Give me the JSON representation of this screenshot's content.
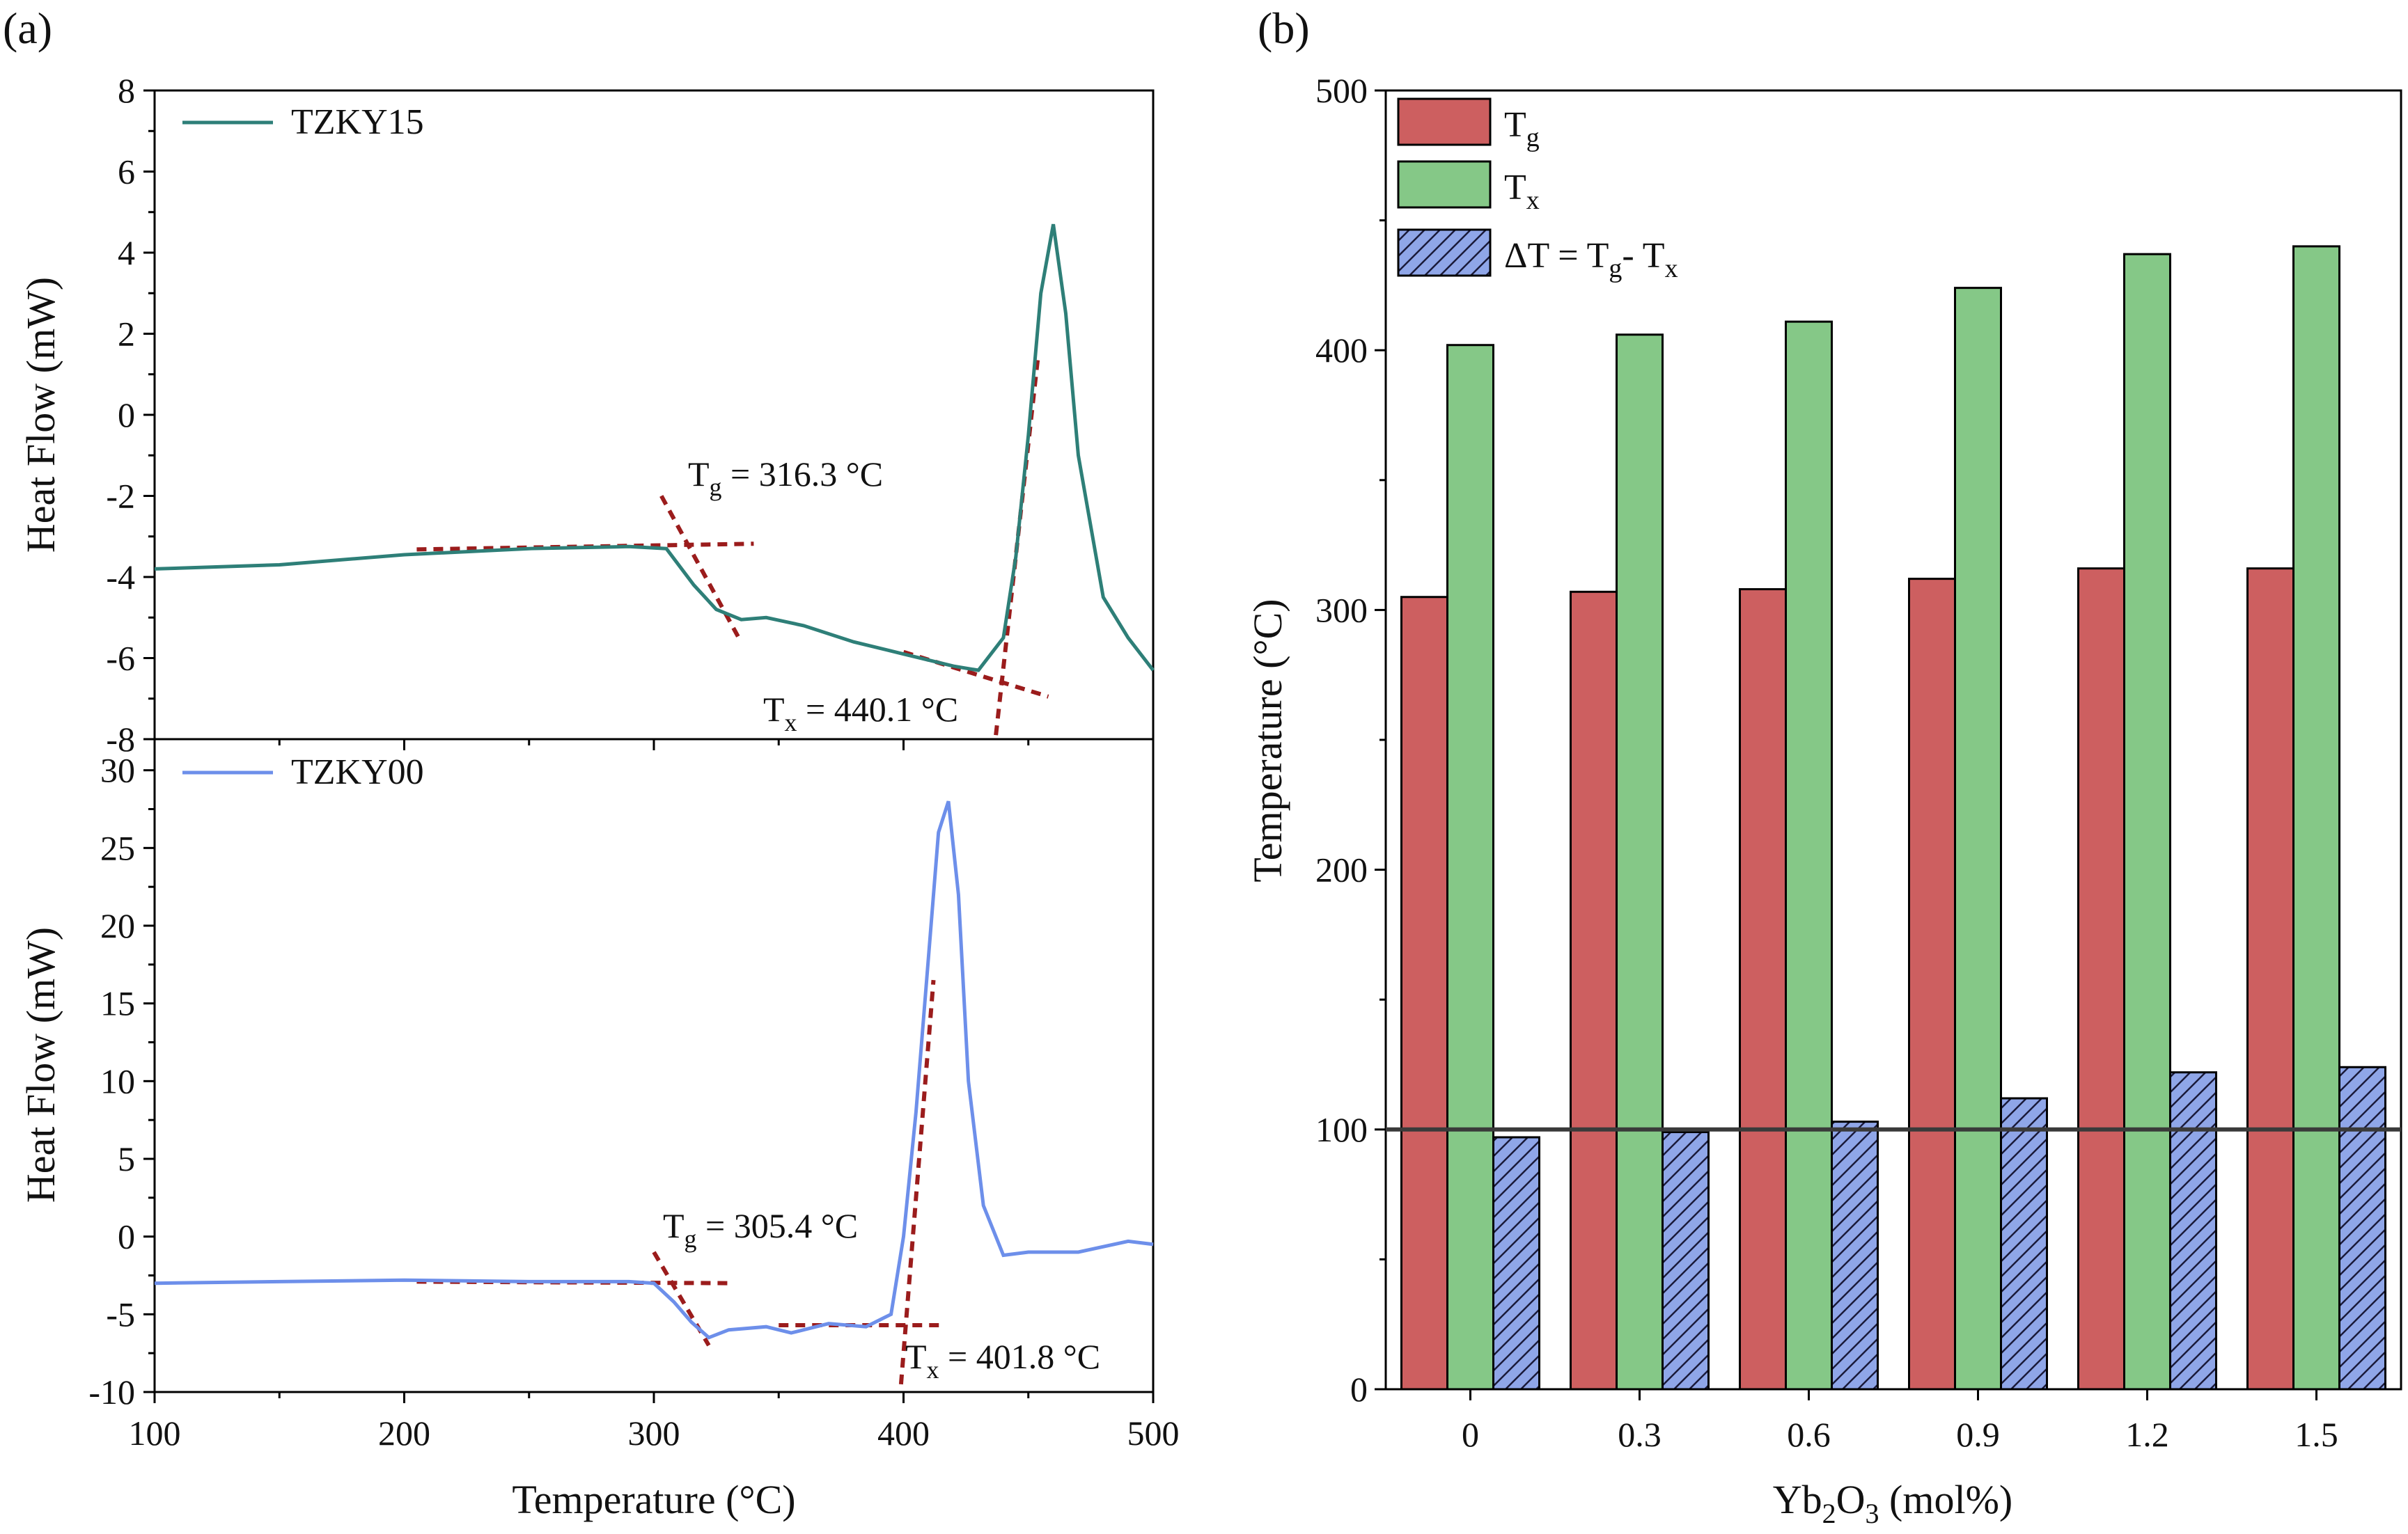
{
  "colors": {
    "tzky15": "#2e7f78",
    "tzky00": "#6d8fea",
    "tg_bar": "#cd5f60",
    "tx_bar": "#85c887",
    "dt_bar": "#8fa6e8",
    "guide": "#9b1c1c",
    "ref_line": "#3a3a3a"
  },
  "chart_data": [
    {
      "panel": "(a)",
      "type": "line",
      "xlabel": "Temperature (°C)",
      "xlim": [
        100,
        500
      ],
      "xticks": [
        "100",
        "200",
        "300",
        "400",
        "500"
      ],
      "subplots": [
        {
          "name": "TZKY15",
          "ylabel": "Heat Flow (mW)",
          "ylim": [
            -8,
            8
          ],
          "yticks": [
            "-8",
            "-6",
            "-4",
            "-2",
            "0",
            "2",
            "4",
            "6",
            "8"
          ],
          "x": [
            100,
            150,
            200,
            250,
            290,
            305,
            316,
            325,
            335,
            345,
            360,
            380,
            400,
            420,
            430,
            440,
            445,
            450,
            455,
            460,
            465,
            470,
            480,
            490,
            500
          ],
          "y": [
            -3.8,
            -3.7,
            -3.45,
            -3.3,
            -3.25,
            -3.3,
            -4.2,
            -4.8,
            -5.05,
            -5.0,
            -5.2,
            -5.6,
            -5.9,
            -6.2,
            -6.3,
            -5.5,
            -3.5,
            -0.5,
            3.0,
            4.7,
            2.5,
            -1.0,
            -4.5,
            -5.5,
            -6.3
          ],
          "annotations": [
            {
              "label": "T",
              "sub": "g",
              "text": " = 316.3 °C",
              "value": 316.3
            },
            {
              "label": "T",
              "sub": "x",
              "text": " = 440.1 °C",
              "value": 440.1
            }
          ]
        },
        {
          "name": "TZKY00",
          "ylabel": "Heat Flow (mW)",
          "ylim": [
            -10,
            32
          ],
          "yticks": [
            "-10",
            "-5",
            "0",
            "5",
            "10",
            "15",
            "20",
            "25",
            "30"
          ],
          "x": [
            100,
            150,
            200,
            250,
            290,
            300,
            308,
            315,
            322,
            330,
            345,
            355,
            370,
            385,
            395,
            400,
            405,
            410,
            414,
            418,
            422,
            426,
            432,
            440,
            450,
            470,
            490,
            500
          ],
          "y": [
            -3.0,
            -2.9,
            -2.8,
            -2.9,
            -2.9,
            -3.0,
            -4.2,
            -5.5,
            -6.5,
            -6.0,
            -5.8,
            -6.2,
            -5.6,
            -5.8,
            -5.0,
            0.0,
            8.0,
            18.0,
            26.0,
            28.0,
            22.0,
            10.0,
            2.0,
            -1.2,
            -1.0,
            -1.0,
            -0.3,
            -0.5
          ],
          "annotations": [
            {
              "label": "T",
              "sub": "g",
              "text": " = 305.4 °C",
              "value": 305.4
            },
            {
              "label": "T",
              "sub": "x",
              "text": " = 401.8 °C",
              "value": 401.8
            }
          ]
        }
      ]
    },
    {
      "panel": "(b)",
      "type": "bar",
      "xlabel_main": "Yb",
      "xlabel_sub1": "2",
      "xlabel_mid": "O",
      "xlabel_sub2": "3",
      "xlabel_tail": " (mol%)",
      "ylabel": "Temperature (°C)",
      "ylim": [
        0,
        500
      ],
      "yticks": [
        "0",
        "100",
        "200",
        "300",
        "400",
        "500"
      ],
      "categories": [
        "0",
        "0.3",
        "0.6",
        "0.9",
        "1.2",
        "1.5"
      ],
      "reference_line": 100,
      "series": [
        {
          "name": "Tg",
          "label": "T",
          "sub": "g",
          "values": [
            305,
            307,
            308,
            312,
            316,
            316
          ]
        },
        {
          "name": "Tx",
          "label": "T",
          "sub": "x",
          "values": [
            402,
            406,
            411,
            424,
            437,
            440
          ]
        },
        {
          "name": "dT",
          "label": "ΔT = T",
          "sub": "g",
          "tail": "-  T",
          "sub2": "x",
          "values": [
            97,
            99,
            103,
            112,
            122,
            124
          ]
        }
      ]
    }
  ]
}
